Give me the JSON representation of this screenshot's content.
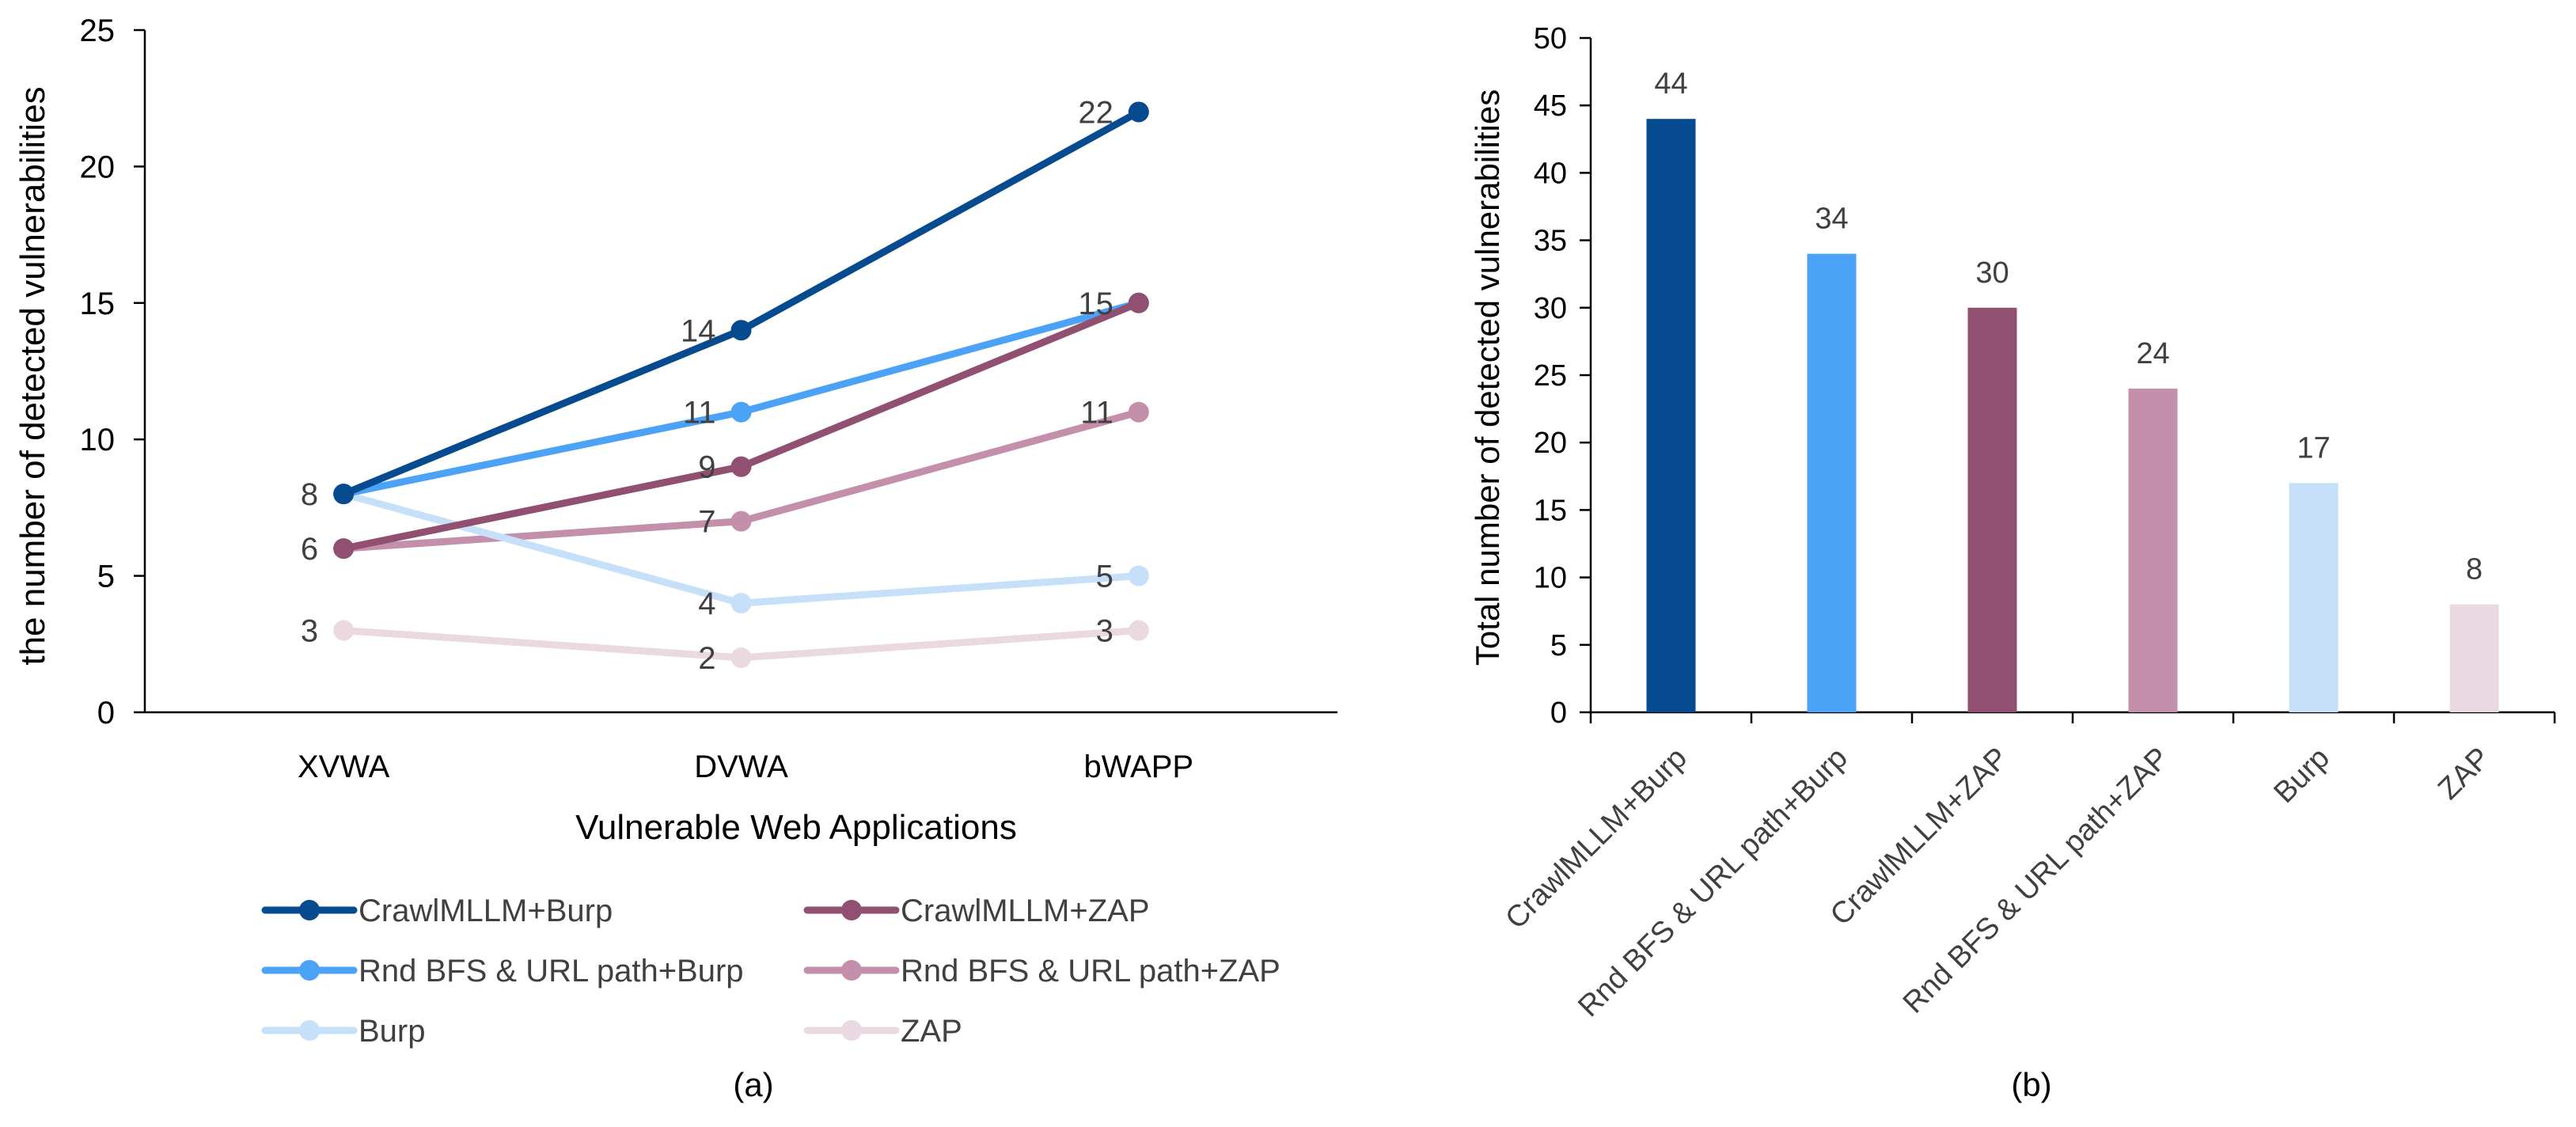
{
  "colors": {
    "crawl_burp": "#064A8F",
    "rnd_burp": "#4BA2F7",
    "burp": "#C6E0FA",
    "crawl_zap": "#914F71",
    "rnd_zap": "#C48FAB",
    "zap": "#EAD9E1",
    "axis": "#000000",
    "text": "#404040"
  },
  "chart_data": [
    {
      "type": "line",
      "panel_label": "(a)",
      "title": "",
      "xlabel": "Vulnerable Web Applications",
      "ylabel": "the number of detected vulnerabilities",
      "categories": [
        "XVWA",
        "DVWA",
        "bWAPP"
      ],
      "ylim": [
        0,
        25
      ],
      "yticks": [
        "0",
        "5",
        "10",
        "15",
        "20",
        "25"
      ],
      "grid": false,
      "legend_position": "bottom",
      "series": [
        {
          "name": "CrawlMLLM+Burp",
          "color_key": "crawl_burp",
          "values": [
            8,
            14,
            22
          ],
          "labels": [
            "8",
            "14",
            "22"
          ]
        },
        {
          "name": "Rnd BFS & URL path+Burp",
          "color_key": "rnd_burp",
          "values": [
            8,
            11,
            15
          ],
          "labels": [
            "",
            "11",
            "15"
          ]
        },
        {
          "name": "Burp",
          "color_key": "burp",
          "values": [
            8,
            4,
            5
          ],
          "labels": [
            "",
            "4",
            "5"
          ]
        },
        {
          "name": "CrawlMLLM+ZAP",
          "color_key": "crawl_zap",
          "values": [
            6,
            9,
            15
          ],
          "labels": [
            "6",
            "9",
            ""
          ]
        },
        {
          "name": "Rnd BFS & URL path+ZAP",
          "color_key": "rnd_zap",
          "values": [
            6,
            7,
            11
          ],
          "labels": [
            "",
            "7",
            "11"
          ]
        },
        {
          "name": "ZAP",
          "color_key": "zap",
          "values": [
            3,
            2,
            3
          ],
          "labels": [
            "3",
            "2",
            "3"
          ]
        }
      ]
    },
    {
      "type": "bar",
      "panel_label": "(b)",
      "title": "",
      "xlabel": "",
      "ylabel": "Total number of detected vulnerabilities",
      "categories": [
        "CrawlMLLM+Burp",
        "Rnd BFS & URL path+Burp",
        "CrawlMLLM+ZAP",
        "Rnd BFS & URL path+ZAP",
        "Burp",
        "ZAP"
      ],
      "values": [
        44,
        34,
        30,
        24,
        17,
        8
      ],
      "value_labels": [
        "44",
        "34",
        "30",
        "24",
        "17",
        "8"
      ],
      "color_keys": [
        "crawl_burp",
        "rnd_burp",
        "crawl_zap",
        "rnd_zap",
        "burp",
        "zap"
      ],
      "ylim": [
        0,
        50
      ],
      "yticks": [
        "0",
        "5",
        "10",
        "15",
        "20",
        "25",
        "30",
        "35",
        "40",
        "45",
        "50"
      ],
      "grid": false
    }
  ]
}
